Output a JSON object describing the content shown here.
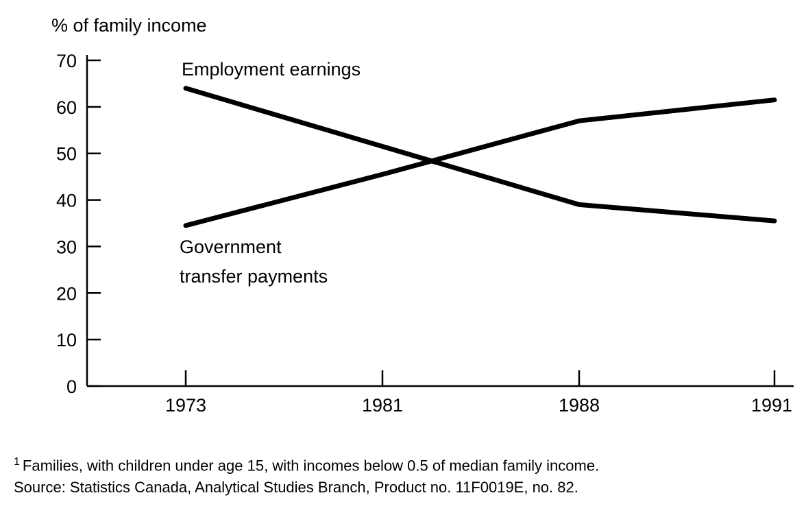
{
  "chart_data": {
    "type": "line",
    "title": "",
    "ylabel": "% of family income",
    "xlabel": "",
    "x": [
      "1973",
      "1981",
      "1988",
      "1991"
    ],
    "yticks": [
      0,
      10,
      20,
      30,
      40,
      50,
      60,
      70
    ],
    "ylim": [
      0,
      70
    ],
    "grid": false,
    "legend": "inline labels",
    "series": [
      {
        "name": "Employment earnings",
        "label_lines": [
          "Employment earnings"
        ],
        "values": [
          64,
          51.5,
          39,
          35.5
        ]
      },
      {
        "name": "Government transfer payments",
        "label_lines": [
          "Government",
          "transfer payments"
        ],
        "values": [
          34.5,
          45.5,
          57,
          61.5
        ]
      }
    ]
  },
  "notes": {
    "footnote_marker": "1",
    "footnote": "Families, with children under age 15, with incomes below 0.5 of median family income.",
    "source": "Source: Statistics Canada, Analytical Studies Branch, Product no. 11F0019E, no. 82."
  }
}
